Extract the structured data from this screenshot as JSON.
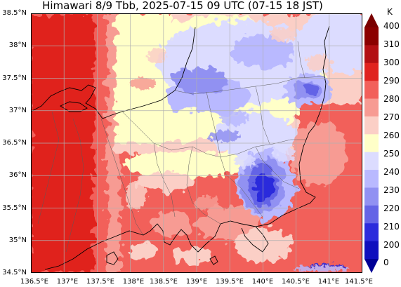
{
  "title": "Himawari 8/9 Tbb, 2025-07-15 09 UTC (07-15 18 JST)",
  "axes": {
    "y_ticks": [
      "38.5°N",
      "38°N",
      "37.5°N",
      "37°N",
      "36.5°N",
      "36°N",
      "35.5°N",
      "35°N",
      "34.5°N"
    ],
    "x_ticks": [
      "136.5°E",
      "137°E",
      "137.5°E",
      "138°E",
      "138.5°E",
      "139°E",
      "139.5°E",
      "140°E",
      "140.5°E",
      "141°E",
      "141.5°E"
    ],
    "lon_range": [
      136.5,
      141.5
    ],
    "lat_range": [
      34.5,
      38.5
    ],
    "grid": true
  },
  "colorbar": {
    "unit": "K",
    "tick_labels": [
      "400",
      "310",
      "300",
      "290",
      "280",
      "270",
      "260",
      "250",
      "240",
      "230",
      "220",
      "210",
      "200",
      "0"
    ],
    "bands": [
      "#8b0000",
      "#b30f13",
      "#e0231f",
      "#f2605a",
      "#f79b93",
      "#fbcfc6",
      "#ffffc8",
      "#dcdcff",
      "#b9b9ff",
      "#9191f2",
      "#6464e6",
      "#2b2bdc",
      "#0f0fbe"
    ],
    "extend_top_color": "#7a0000",
    "extend_bottom_color": "#000096"
  },
  "colors": {
    "grid": "#b0b0b0",
    "coast": "#000000",
    "prefecture_border": "#5a5a5a"
  }
}
